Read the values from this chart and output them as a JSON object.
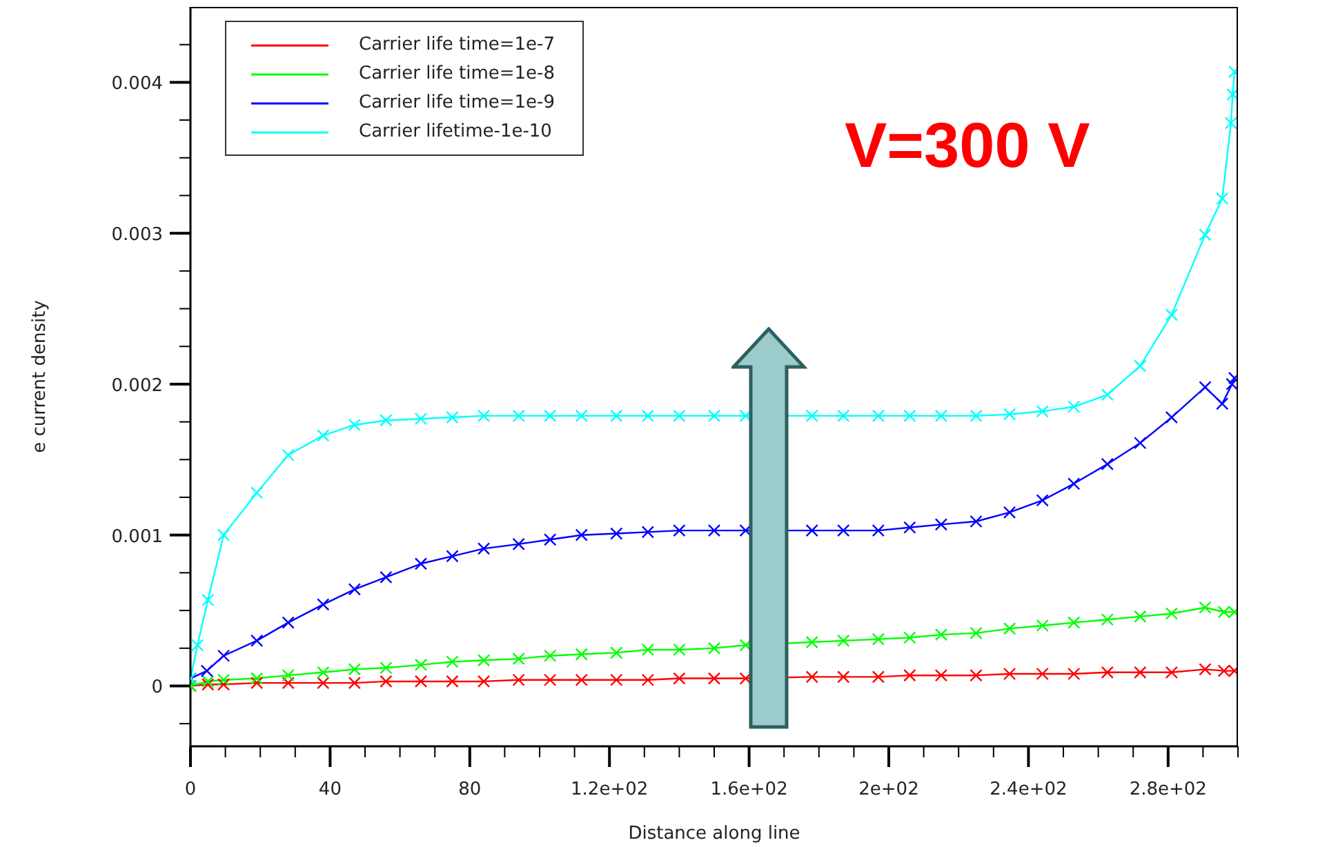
{
  "chart_data": {
    "type": "line",
    "xlabel": "Distance along line",
    "ylabel": "e current density",
    "annotations": [
      "V=300 V"
    ],
    "xlim": [
      0,
      300
    ],
    "ylim": [
      -0.0004,
      0.0045
    ],
    "xticks": [
      0,
      {
        "value": 10,
        "label": null
      },
      {
        "value": 20,
        "label": null
      },
      {
        "value": 30,
        "label": null
      },
      40,
      {
        "value": 50,
        "label": null
      },
      {
        "value": 60,
        "label": null
      },
      {
        "value": 70,
        "label": null
      },
      80,
      {
        "value": 90,
        "label": null
      },
      {
        "value": 100,
        "label": null
      },
      {
        "value": 110,
        "label": null
      },
      {
        "value": 120,
        "label": "1.2e+02"
      },
      {
        "value": 130,
        "label": null
      },
      {
        "value": 140,
        "label": null
      },
      {
        "value": 150,
        "label": null
      },
      {
        "value": 160,
        "label": "1.6e+02"
      },
      {
        "value": 170,
        "label": null
      },
      {
        "value": 180,
        "label": null
      },
      {
        "value": 190,
        "label": null
      },
      {
        "value": 200,
        "label": "2e+02"
      },
      {
        "value": 210,
        "label": null
      },
      {
        "value": 220,
        "label": null
      },
      {
        "value": 230,
        "label": null
      },
      {
        "value": 240,
        "label": "2.4e+02"
      },
      {
        "value": 250,
        "label": null
      },
      {
        "value": 260,
        "label": null
      },
      {
        "value": 270,
        "label": null
      },
      {
        "value": 280,
        "label": "2.8e+02"
      },
      {
        "value": 290,
        "label": null
      },
      {
        "value": 300,
        "label": null
      }
    ],
    "yticks": [
      {
        "value": -0.00025,
        "label": null
      },
      0,
      {
        "value": 0.00025,
        "label": null
      },
      {
        "value": 0.0005,
        "label": null
      },
      {
        "value": 0.00075,
        "label": null
      },
      0.001,
      {
        "value": 0.00125,
        "label": null
      },
      {
        "value": 0.0015,
        "label": null
      },
      {
        "value": 0.00175,
        "label": null
      },
      0.002,
      {
        "value": 0.00225,
        "label": null
      },
      {
        "value": 0.0025,
        "label": null
      },
      {
        "value": 0.00275,
        "label": null
      },
      0.003,
      {
        "value": 0.00325,
        "label": null
      },
      {
        "value": 0.0035,
        "label": null
      },
      {
        "value": 0.00375,
        "label": null
      },
      0.004,
      {
        "value": 0.00425,
        "label": null
      }
    ],
    "grid": false,
    "legend": "top left",
    "marker": "cross",
    "line_style": "solid",
    "series": [
      {
        "name": "Carrier life time=1e-7",
        "color": "#ff0000",
        "x": [
          0,
          5,
          9.5,
          19,
          28,
          38,
          47,
          56,
          66,
          75,
          84,
          94,
          103,
          112,
          122,
          131,
          140,
          150,
          159,
          178,
          187,
          197,
          206,
          215,
          225,
          234.6,
          244,
          253,
          262.6,
          272,
          281,
          290.6,
          296,
          299
        ],
        "values": [
          0,
          1e-05,
          1e-05,
          2e-05,
          2e-05,
          2e-05,
          2e-05,
          3e-05,
          3e-05,
          3e-05,
          3e-05,
          4e-05,
          4e-05,
          4e-05,
          4e-05,
          4e-05,
          5e-05,
          5e-05,
          5e-05,
          6e-05,
          6e-05,
          6e-05,
          7e-05,
          7e-05,
          7e-05,
          8e-05,
          8e-05,
          8e-05,
          9e-05,
          9e-05,
          9e-05,
          0.00011,
          0.0001,
          0.0001
        ]
      },
      {
        "name": "Carrier life time=1e-8",
        "color": "#00ff00",
        "x": [
          0,
          5,
          9.5,
          19,
          28,
          38,
          47,
          56,
          66,
          75,
          84,
          94,
          103,
          112,
          122,
          131,
          140,
          150,
          159,
          178,
          187,
          197,
          206,
          215,
          225,
          234.6,
          244,
          253,
          262.6,
          272,
          281,
          290.6,
          296,
          299
        ],
        "values": [
          0,
          3e-05,
          4e-05,
          5e-05,
          7e-05,
          9e-05,
          0.00011,
          0.00012,
          0.00014,
          0.00016,
          0.00017,
          0.00018,
          0.0002,
          0.00021,
          0.00022,
          0.00024,
          0.00024,
          0.00025,
          0.00027,
          0.00029,
          0.0003,
          0.00031,
          0.00032,
          0.00034,
          0.00035,
          0.00038,
          0.0004,
          0.00042,
          0.00044,
          0.00046,
          0.00048,
          0.00052,
          0.00049,
          0.00049
        ]
      },
      {
        "name": "Carrier life time=1e-9",
        "color": "#0000ff",
        "x": [
          0,
          4.7,
          9.5,
          19,
          28,
          38,
          47,
          56,
          66,
          75,
          84,
          94,
          103,
          112,
          122,
          131,
          140,
          150,
          159,
          178,
          187,
          197,
          206,
          215,
          225,
          234.6,
          244,
          253,
          262.6,
          272,
          281,
          290.6,
          295.5,
          298.3,
          299
        ],
        "values": [
          5e-05,
          0.0001,
          0.0002,
          0.0003,
          0.00042,
          0.00054,
          0.00064,
          0.00072,
          0.00081,
          0.00086,
          0.00091,
          0.00094,
          0.00097,
          0.001,
          0.00101,
          0.00102,
          0.00103,
          0.00103,
          0.00103,
          0.00103,
          0.00103,
          0.00103,
          0.00105,
          0.00107,
          0.00109,
          0.00115,
          0.00123,
          0.00134,
          0.00147,
          0.00161,
          0.00178,
          0.00198,
          0.00187,
          0.002,
          0.00204
        ]
      },
      {
        "name": "Carrier lifetime-1e-10",
        "color": "#00ffff",
        "x": [
          0,
          2,
          5,
          9.5,
          19,
          28,
          38,
          47,
          56,
          66,
          75,
          84,
          94,
          103,
          112,
          122,
          131,
          140,
          150,
          159,
          178,
          187,
          197,
          206,
          215,
          225,
          234.6,
          244,
          253,
          262.6,
          272,
          281,
          290.6,
          295.5,
          298,
          298.5,
          299
        ],
        "values": [
          5e-05,
          0.00027,
          0.00057,
          0.001,
          0.00128,
          0.00153,
          0.00166,
          0.00173,
          0.00176,
          0.00177,
          0.00178,
          0.00179,
          0.00179,
          0.00179,
          0.00179,
          0.00179,
          0.00179,
          0.00179,
          0.00179,
          0.00179,
          0.00179,
          0.00179,
          0.00179,
          0.00179,
          0.00179,
          0.00179,
          0.0018,
          0.00182,
          0.00185,
          0.00193,
          0.00212,
          0.00246,
          0.00299,
          0.00323,
          0.00373,
          0.00392,
          0.00407
        ]
      }
    ]
  }
}
